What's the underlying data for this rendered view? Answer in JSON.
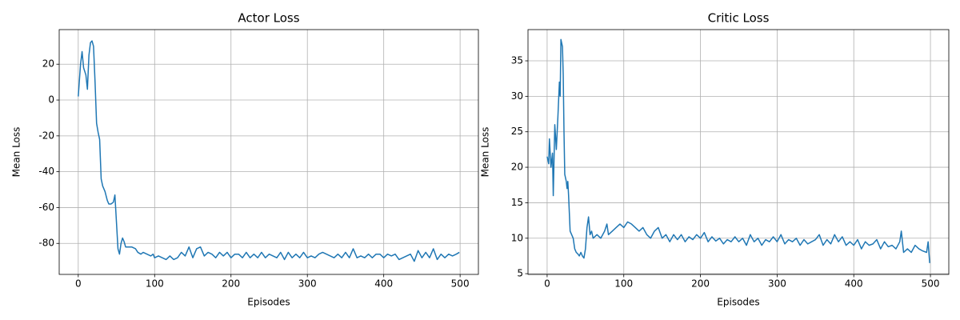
{
  "chart_data": [
    {
      "type": "line",
      "title": "Actor Loss",
      "xlabel": "Episodes",
      "ylabel": "Mean Loss",
      "color": "#1f77b4",
      "grid": true,
      "xlim": [
        -24.95,
        523.95
      ],
      "xticks": [
        0,
        100,
        200,
        300,
        400,
        500
      ],
      "ylim": [
        -97.3,
        39.3
      ],
      "yticks": [
        -80,
        -60,
        -40,
        -20,
        0,
        20
      ],
      "x": [
        0,
        3,
        5,
        7,
        10,
        12,
        14,
        16,
        18,
        20,
        22,
        24,
        26,
        28,
        30,
        32,
        35,
        38,
        40,
        43,
        46,
        48,
        50,
        52,
        54,
        56,
        58,
        60,
        62,
        65,
        70,
        75,
        78,
        82,
        85,
        90,
        95,
        98,
        100,
        105,
        110,
        115,
        120,
        125,
        130,
        135,
        140,
        145,
        150,
        155,
        160,
        165,
        170,
        175,
        180,
        185,
        190,
        195,
        200,
        205,
        210,
        215,
        220,
        225,
        230,
        235,
        240,
        245,
        250,
        255,
        260,
        265,
        270,
        275,
        280,
        285,
        290,
        295,
        300,
        305,
        310,
        315,
        320,
        325,
        330,
        335,
        340,
        345,
        350,
        355,
        360,
        365,
        370,
        375,
        380,
        385,
        390,
        395,
        400,
        405,
        410,
        415,
        420,
        425,
        430,
        435,
        440,
        445,
        450,
        455,
        460,
        465,
        470,
        475,
        480,
        485,
        490,
        495,
        499
      ],
      "values": [
        2,
        20,
        27,
        18,
        14,
        6,
        25,
        32,
        33,
        30,
        10,
        -13,
        -18,
        -22,
        -44,
        -48,
        -51,
        -56,
        -58,
        -58,
        -57,
        -53,
        -68,
        -83,
        -86,
        -80,
        -77,
        -79,
        -82,
        -82,
        -82,
        -83,
        -85,
        -86,
        -85,
        -86,
        -87,
        -86,
        -88,
        -87,
        -88,
        -89,
        -87,
        -89,
        -88,
        -85,
        -87,
        -82,
        -88,
        -83,
        -82,
        -87,
        -85,
        -86,
        -88,
        -85,
        -87,
        -85,
        -88,
        -86,
        -86,
        -88,
        -85,
        -88,
        -86,
        -88,
        -85,
        -88,
        -86,
        -87,
        -88,
        -85,
        -89,
        -85,
        -88,
        -86,
        -88,
        -85,
        -88,
        -87,
        -88,
        -86,
        -85,
        -86,
        -87,
        -88,
        -86,
        -88,
        -85,
        -88,
        -83,
        -88,
        -87,
        -88,
        -86,
        -88,
        -86,
        -86,
        -88,
        -86,
        -87,
        -86,
        -89,
        -88,
        -87,
        -86,
        -90,
        -84,
        -88,
        -85,
        -88,
        -83,
        -89,
        -86,
        -88,
        -86,
        -87,
        -86,
        -85
      ]
    },
    {
      "type": "line",
      "title": "Critic Loss",
      "xlabel": "Episodes",
      "ylabel": "Mean Loss",
      "color": "#1f77b4",
      "grid": true,
      "xlim": [
        -24.95,
        523.95
      ],
      "xticks": [
        0,
        100,
        200,
        300,
        400,
        500
      ],
      "ylim": [
        4.9,
        39.4
      ],
      "yticks": [
        5,
        10,
        15,
        20,
        25,
        30,
        35
      ],
      "x": [
        0,
        2,
        3,
        5,
        7,
        8,
        10,
        12,
        14,
        16,
        17,
        18,
        20,
        21,
        22,
        23,
        25,
        26,
        27,
        28,
        30,
        32,
        34,
        36,
        38,
        40,
        42,
        44,
        46,
        48,
        50,
        52,
        54,
        56,
        58,
        60,
        65,
        70,
        75,
        78,
        80,
        85,
        90,
        95,
        100,
        105,
        110,
        115,
        120,
        125,
        130,
        135,
        140,
        145,
        150,
        155,
        160,
        165,
        170,
        175,
        180,
        185,
        190,
        195,
        200,
        205,
        210,
        215,
        220,
        225,
        230,
        235,
        240,
        245,
        250,
        255,
        260,
        265,
        270,
        275,
        280,
        285,
        290,
        295,
        300,
        305,
        310,
        315,
        320,
        325,
        330,
        335,
        340,
        345,
        350,
        355,
        360,
        365,
        370,
        375,
        380,
        385,
        390,
        395,
        400,
        405,
        410,
        415,
        420,
        425,
        430,
        435,
        440,
        445,
        450,
        455,
        460,
        462,
        465,
        470,
        475,
        480,
        485,
        490,
        495,
        497,
        499
      ],
      "values": [
        21.5,
        20.5,
        24,
        20,
        22,
        16,
        26,
        22.5,
        27,
        32,
        30,
        38,
        37,
        33,
        25,
        19,
        18,
        17,
        18,
        16,
        11,
        10.5,
        10,
        8.5,
        8,
        7.8,
        7.5,
        8,
        7.5,
        7.2,
        8.5,
        11.5,
        13,
        10.5,
        11,
        10,
        10.5,
        10,
        11,
        12,
        10.5,
        11,
        11.5,
        12,
        11.5,
        12.3,
        12,
        11.5,
        11,
        11.5,
        10.5,
        10,
        11,
        11.5,
        10,
        10.5,
        9.5,
        10.5,
        9.8,
        10.5,
        9.5,
        10.2,
        9.8,
        10.5,
        10,
        10.8,
        9.5,
        10.2,
        9.6,
        10,
        9.2,
        9.8,
        9.5,
        10.2,
        9.5,
        10,
        9,
        10.5,
        9.5,
        10,
        9,
        9.8,
        9.5,
        10.2,
        9.5,
        10.5,
        9.2,
        9.8,
        9.5,
        10,
        9,
        9.8,
        9.2,
        9.5,
        9.8,
        10.5,
        9,
        9.8,
        9.2,
        10.5,
        9.5,
        10.2,
        9,
        9.5,
        9,
        9.8,
        8.5,
        9.5,
        9,
        9.2,
        9.8,
        8.5,
        9.5,
        8.8,
        9,
        8.5,
        9.5,
        11,
        8,
        8.5,
        8,
        9,
        8.5,
        8.2,
        8,
        9.5,
        6.5
      ]
    }
  ]
}
